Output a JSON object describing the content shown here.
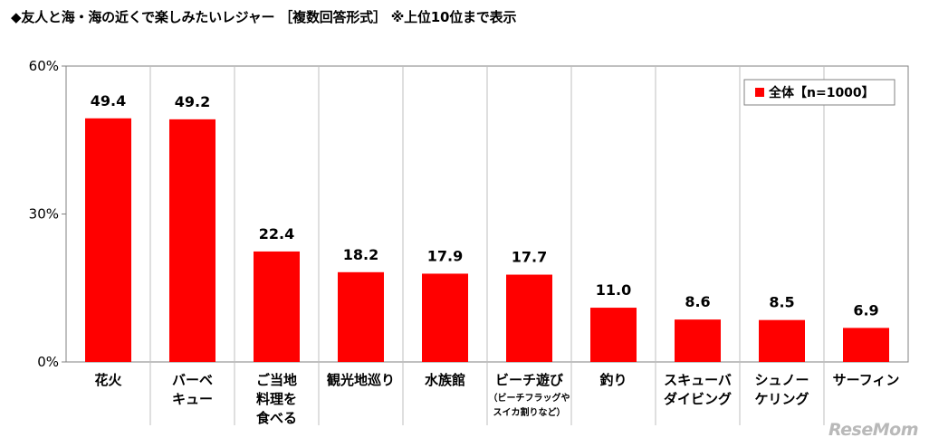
{
  "title": "◆友人と海・海の近くで楽しみたいレジャー ［複数回答形式］ ※上位10位まで表示",
  "watermark": "ReseMom",
  "colors": {
    "bar": "#ff0000",
    "grid": "#bfbfbf",
    "axis": "#808080"
  },
  "chart_data": {
    "type": "bar",
    "ylim": [
      0,
      60
    ],
    "ytick_values": [
      0,
      30,
      60
    ],
    "ytick_labels": [
      "0%",
      "30%",
      "60%"
    ],
    "grid": "vertical separators between categories",
    "legend_position": "top-right",
    "categories": [
      {
        "lines": [
          "花火"
        ],
        "sub": []
      },
      {
        "lines": [
          "バーベ",
          "キュー"
        ],
        "sub": []
      },
      {
        "lines": [
          "ご当地",
          "料理を",
          "食べる"
        ],
        "sub": []
      },
      {
        "lines": [
          "観光地巡り"
        ],
        "sub": []
      },
      {
        "lines": [
          "水族館"
        ],
        "sub": []
      },
      {
        "lines": [
          "ビーチ遊び"
        ],
        "sub": [
          "（ビーチフラッグや",
          "スイカ割りなど）"
        ]
      },
      {
        "lines": [
          "釣り"
        ],
        "sub": []
      },
      {
        "lines": [
          "スキューバ",
          "ダイビング"
        ],
        "sub": []
      },
      {
        "lines": [
          "シュノー",
          "ケリング"
        ],
        "sub": []
      },
      {
        "lines": [
          "サーフィン"
        ],
        "sub": []
      }
    ],
    "series": [
      {
        "name": "全体【n=1000】",
        "values": [
          49.4,
          49.2,
          22.4,
          18.2,
          17.9,
          17.7,
          11.0,
          8.6,
          8.5,
          6.9
        ]
      }
    ]
  }
}
